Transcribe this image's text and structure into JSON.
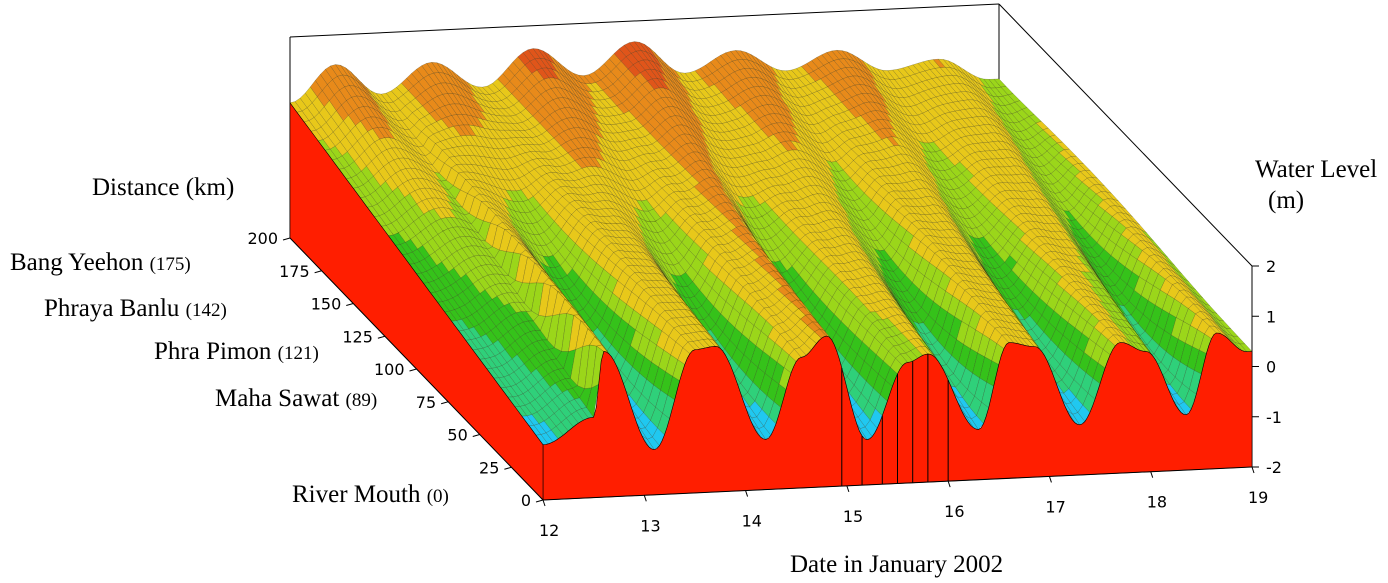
{
  "chart_data": {
    "type": "surface",
    "x_axis": {
      "label": "Date in January 2002",
      "ticks": [
        "12",
        "13",
        "14",
        "15",
        "16",
        "17",
        "18",
        "19"
      ],
      "range": [
        12,
        19
      ]
    },
    "y_axis": {
      "label": "Distance (km)",
      "ticks": [
        "0",
        "25",
        "50",
        "75",
        "100",
        "125",
        "150",
        "175",
        "200"
      ],
      "range": [
        0,
        200
      ]
    },
    "z_axis": {
      "label_line1": "Water Level",
      "label_line2": "(m)",
      "ticks": [
        "-2",
        "-1",
        "0",
        "1",
        "2"
      ],
      "range": [
        -2,
        2
      ]
    },
    "stations": [
      {
        "name": "Bang Yeehon",
        "code": "(175)",
        "km": 175
      },
      {
        "name": "Phraya Banlu",
        "code": "(142)",
        "km": 142
      },
      {
        "name": "Phra Pimon",
        "code": "(121)",
        "km": 121
      },
      {
        "name": "Maha Sawat",
        "code": "(89)",
        "km": 89
      },
      {
        "name": "River Mouth",
        "code": "(0)",
        "km": 0
      }
    ],
    "river_mouth_series": {
      "days": [
        12.0,
        12.5,
        12.6,
        13.1,
        13.5,
        13.7,
        14.2,
        14.55,
        14.8,
        15.2,
        15.6,
        15.8,
        16.3,
        16.6,
        16.85,
        17.3,
        17.7,
        17.95,
        18.35,
        18.65,
        18.95
      ],
      "level_m": [
        -0.9,
        -0.4,
        0.9,
        -1.1,
        0.85,
        0.9,
        -1.0,
        0.6,
        1.0,
        -1.1,
        0.4,
        0.55,
        -1.0,
        0.7,
        0.6,
        -1.0,
        0.6,
        0.4,
        -0.9,
        0.7,
        0.3
      ]
    },
    "far_end_series": {
      "days": [
        12.0,
        12.45,
        12.9,
        13.4,
        13.9,
        14.4,
        14.9,
        15.4,
        15.9,
        16.4,
        16.9,
        17.4,
        17.9,
        18.4,
        18.9
      ],
      "level_m": [
        0.6,
        1.4,
        0.7,
        1.35,
        0.75,
        1.55,
        0.9,
        1.6,
        0.85,
        1.3,
        0.8,
        1.2,
        0.7,
        0.9,
        0.4
      ]
    },
    "colorscale": [
      "#1e4fe0",
      "#20c8f0",
      "#2fd07a",
      "#35c21a",
      "#9bd61a",
      "#e8c81a",
      "#e88a1a",
      "#e0551a"
    ],
    "base_color": "#ff1e00"
  }
}
